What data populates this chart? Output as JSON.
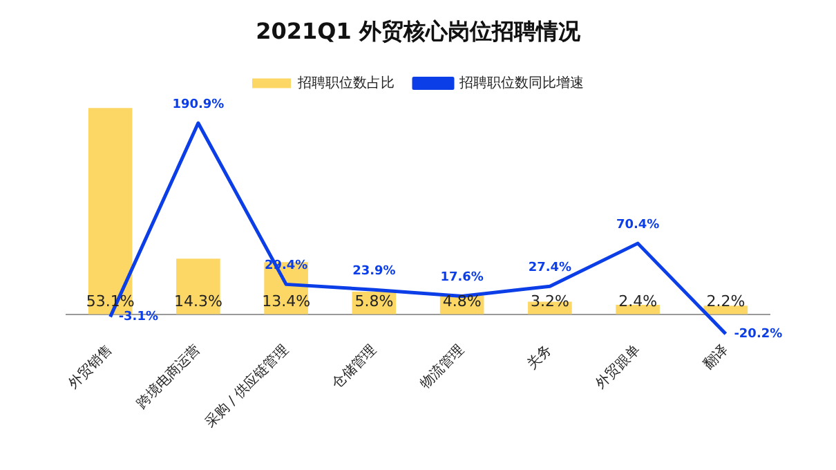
{
  "chart_data": {
    "type": "bar",
    "title": "2021Q1 外贸核心岗位招聘情况",
    "categories": [
      "外贸销售",
      "跨境电商运营",
      "采购 / 供应链管理",
      "仓储管理",
      "物流管理",
      "关务",
      "外贸跟单",
      "翻译"
    ],
    "series": [
      {
        "name": "招聘职位数占比",
        "color": "#fdd766",
        "values": [
          53.1,
          14.3,
          13.4,
          5.8,
          4.8,
          3.2,
          2.4,
          2.2
        ],
        "value_labels": [
          "53.1%",
          "14.3%",
          "13.4%",
          "5.8%",
          "4.8%",
          "3.2%",
          "2.4%",
          "2.2%"
        ]
      },
      {
        "name": "招聘职位数同比增速",
        "type": "line",
        "axis": "y2",
        "color": "#0c3ee8",
        "values": [
          -3.1,
          190.9,
          29.4,
          23.9,
          17.6,
          27.4,
          70.4,
          -20.2
        ],
        "value_labels": [
          "-3.1%",
          "190.9%",
          "29.4%",
          "23.9%",
          "17.6%",
          "27.4%",
          "70.4%",
          "-20.2%"
        ]
      }
    ],
    "grid": false,
    "legend": "top",
    "marker": "none",
    "line_style": "solid"
  }
}
